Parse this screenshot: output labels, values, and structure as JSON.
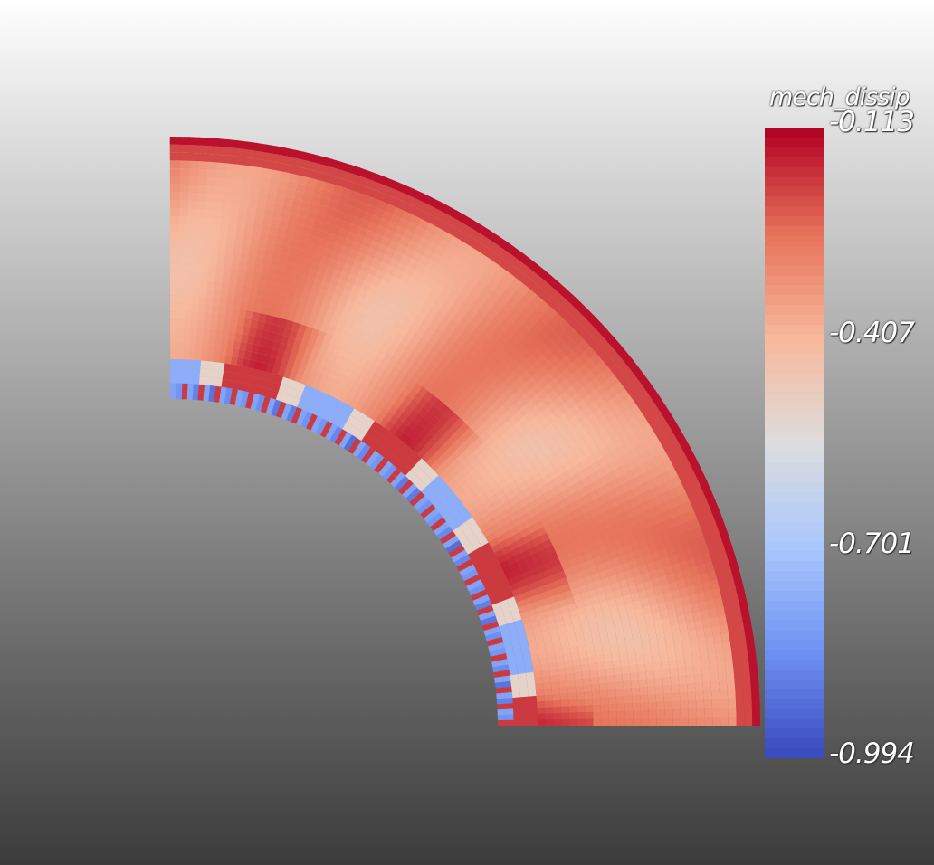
{
  "scalar_bar": {
    "title": "mech_dissip",
    "range": [
      -0.994,
      -0.113
    ],
    "ticks": [
      "-0.113",
      "-0.407",
      "-0.701",
      "-0.994"
    ]
  },
  "colormap": {
    "name": "cool-to-warm",
    "stops": [
      "#3b4cc0",
      "#6f92f3",
      "#aac7fd",
      "#dddddd",
      "#f7b89c",
      "#e7745b",
      "#b40426"
    ]
  },
  "field": {
    "inner_radius_band": "boundary layer with blue/red alternating cells",
    "num_plumes": 7
  }
}
